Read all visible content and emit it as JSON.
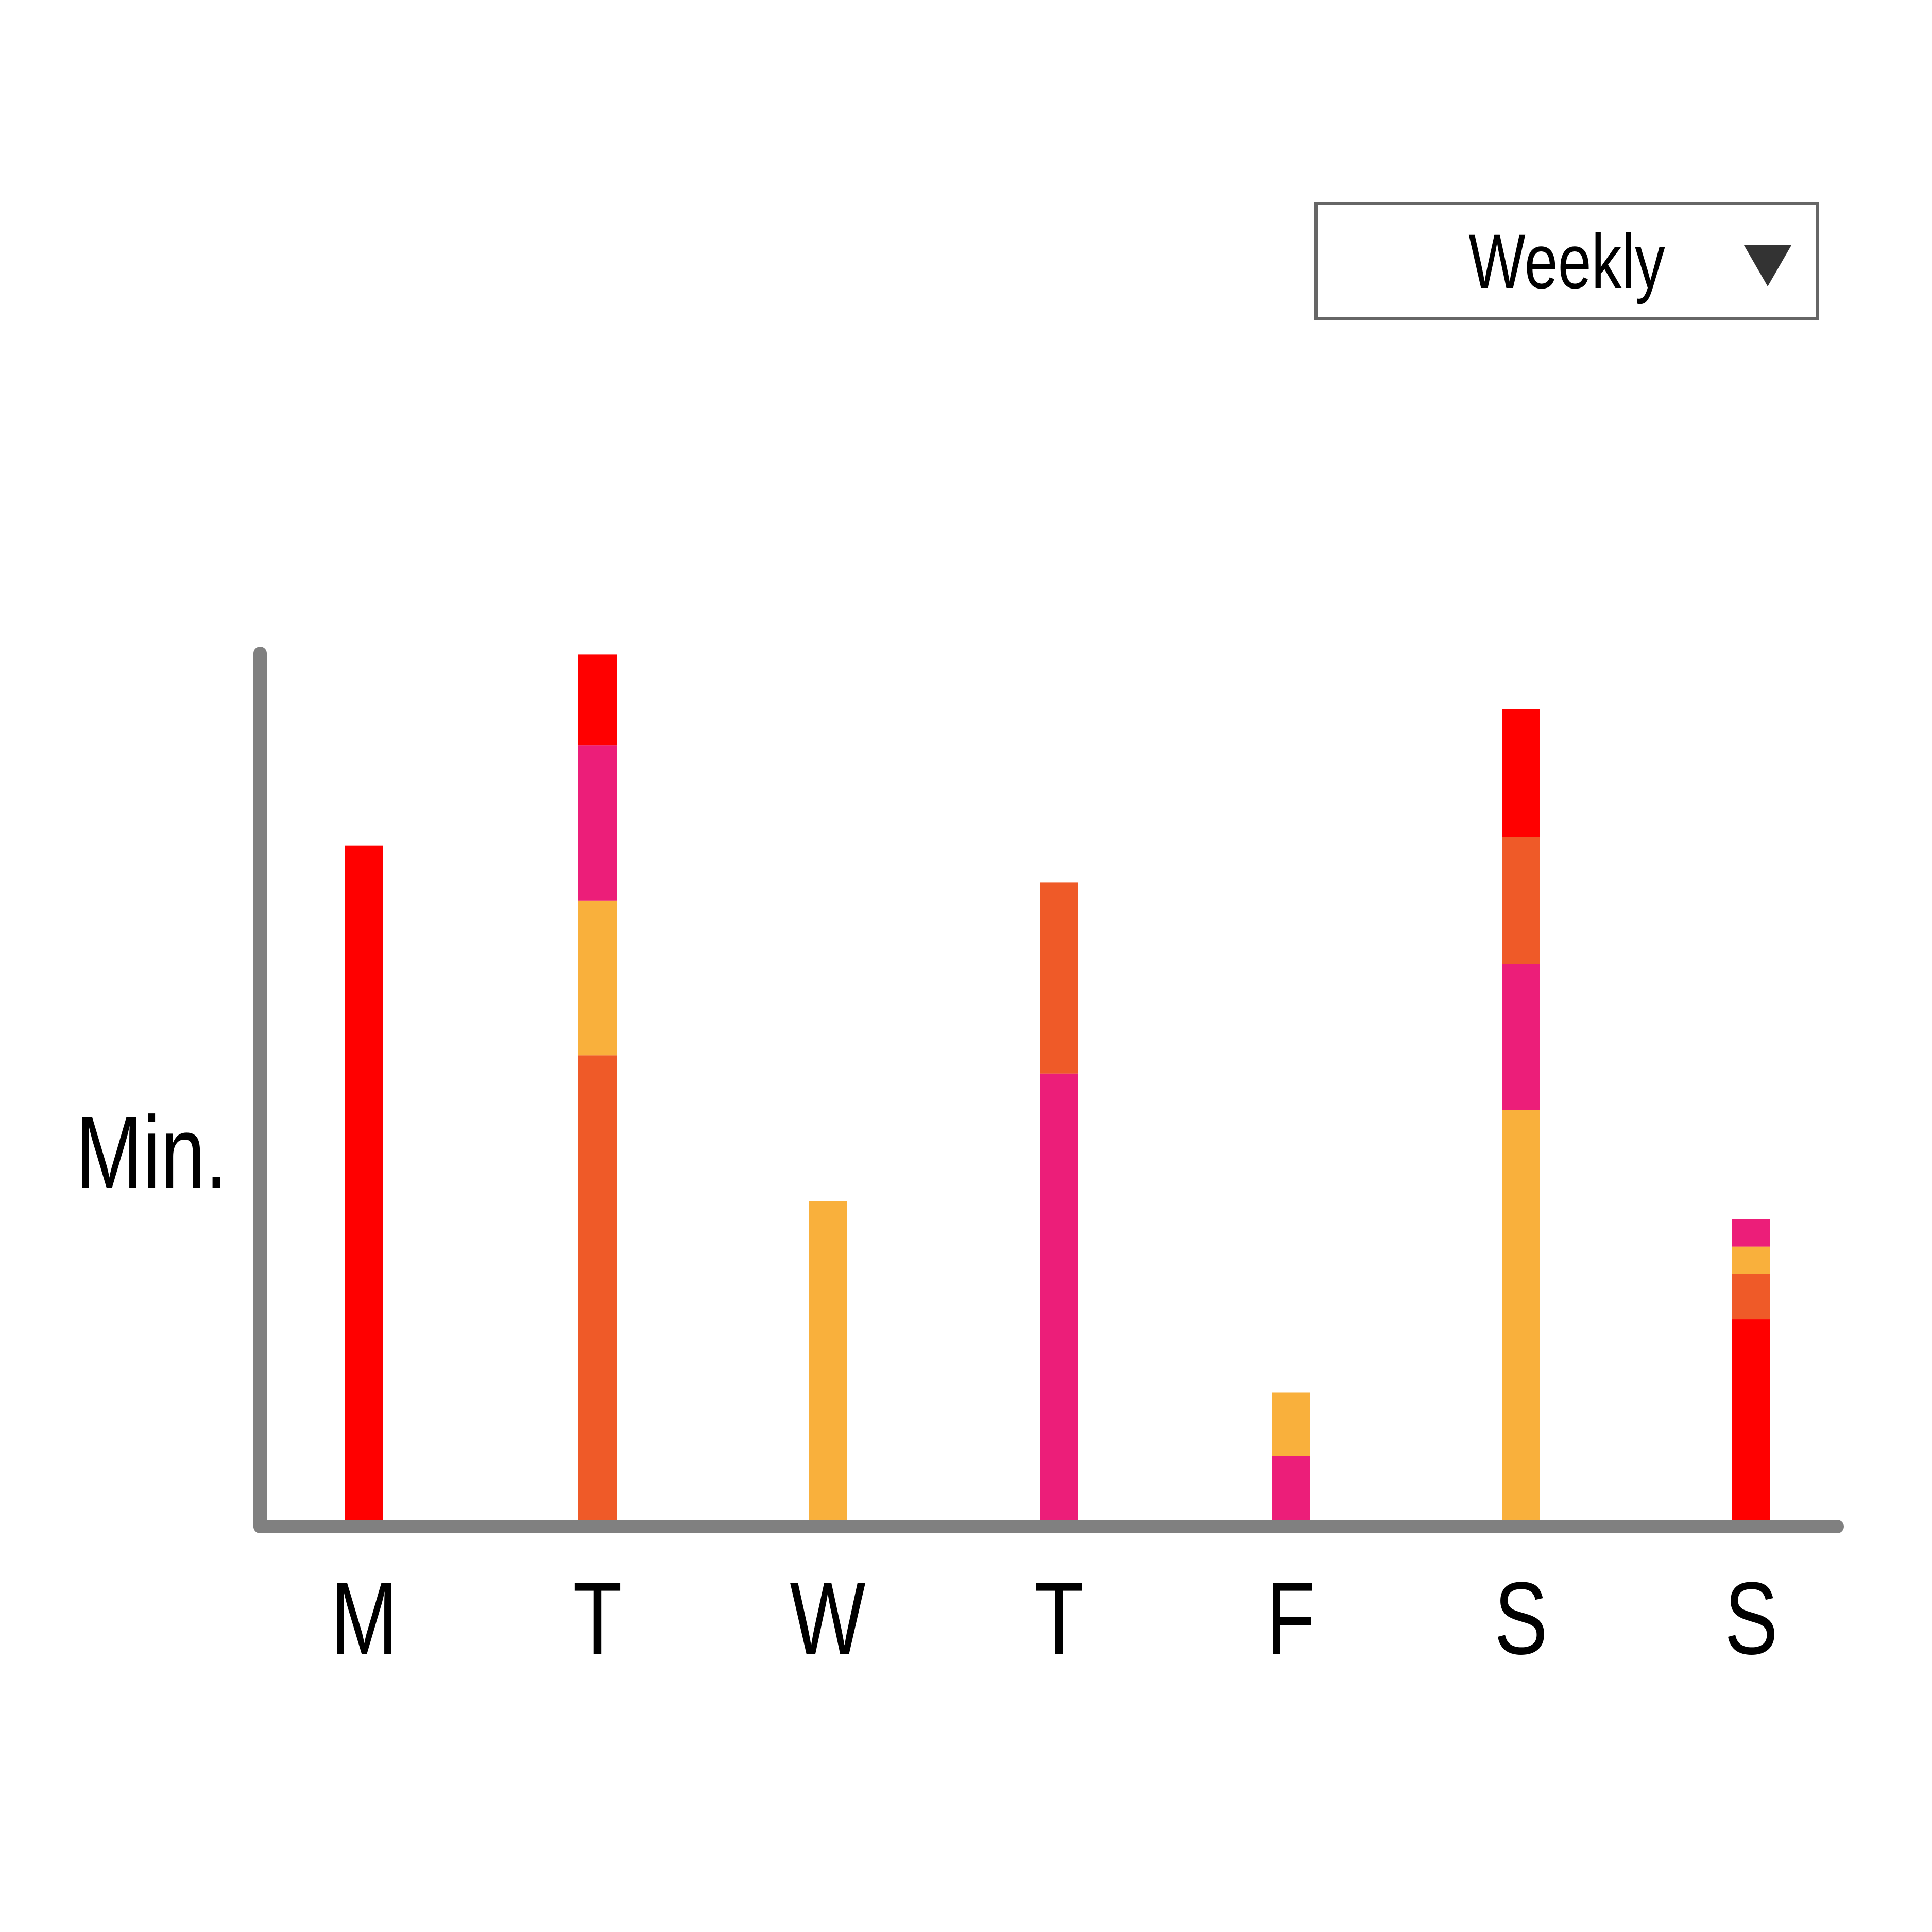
{
  "period_select": {
    "selected": "Weekly",
    "icon": "triangle-down-icon"
  },
  "colors": {
    "axis": "#808080",
    "red": "#FF0000",
    "magenta": "#EC1E79",
    "amber": "#F9B03C",
    "orange": "#EF5A28"
  },
  "chart_data": {
    "type": "bar",
    "stacked": true,
    "ylabel": "Min.",
    "xlabel": "",
    "categories": [
      "M",
      "T",
      "W",
      "T",
      "F",
      "S",
      "S"
    ],
    "ylim": [
      0,
      100
    ],
    "grid": false,
    "stacks": [
      [
        {
          "color": "red",
          "value": 74
        }
      ],
      [
        {
          "color": "orange",
          "value": 51
        },
        {
          "color": "amber",
          "value": 17
        },
        {
          "color": "magenta",
          "value": 17
        },
        {
          "color": "red",
          "value": 10
        }
      ],
      [
        {
          "color": "amber",
          "value": 35
        }
      ],
      [
        {
          "color": "magenta",
          "value": 49
        },
        {
          "color": "orange",
          "value": 21
        }
      ],
      [
        {
          "color": "magenta",
          "value": 7
        },
        {
          "color": "amber",
          "value": 7
        }
      ],
      [
        {
          "color": "amber",
          "value": 45
        },
        {
          "color": "magenta",
          "value": 16
        },
        {
          "color": "orange",
          "value": 14
        },
        {
          "color": "red",
          "value": 14
        }
      ],
      [
        {
          "color": "red",
          "value": 22
        },
        {
          "color": "orange",
          "value": 5
        },
        {
          "color": "amber",
          "value": 3
        },
        {
          "color": "magenta",
          "value": 3
        }
      ]
    ]
  }
}
